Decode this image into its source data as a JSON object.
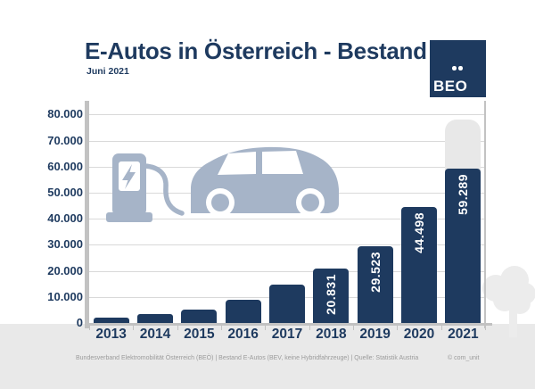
{
  "header": {
    "title": "E-Autos in Österreich - Bestand",
    "subtitle": "Juni 2021"
  },
  "logo": {
    "text": "BEO",
    "umlaut_dots": "..",
    "full_name": "BEÖ"
  },
  "chart_data": {
    "type": "bar",
    "title": "E-Autos in Österreich - Bestand",
    "subtitle": "Juni 2021",
    "xlabel": "",
    "ylabel": "",
    "ylim": [
      0,
      80000
    ],
    "grid": true,
    "categories": [
      "2013",
      "2014",
      "2015",
      "2016",
      "2017",
      "2018",
      "2019",
      "2020",
      "2021"
    ],
    "values": [
      2070,
      3386,
      5032,
      9073,
      14618,
      20831,
      29523,
      44498,
      59289
    ],
    "bar_labels": [
      "",
      "",
      "",
      "",
      "",
      "20.831",
      "29.523",
      "44.498",
      "59.289"
    ],
    "ytick_labels": [
      "80.000",
      "70.000",
      "60.000",
      "50.000",
      "40.000",
      "30.000",
      "20.000",
      "10.000",
      "0"
    ],
    "projection_bar": {
      "category": "2021",
      "value_estimate": 78000,
      "style": "light-gray ghost behind 2021 bar"
    }
  },
  "footer": {
    "source": "Bundesverband Elektromobilität Österreich (BEÖ) | Bestand E-Autos (BEV, keine Hybridfahrzeuge) | Quelle: Statistik Austria",
    "credit": "© com_unit"
  },
  "icons": {
    "illustration": "ev-charging-station-and-car",
    "decoration": "tree-silhouette"
  },
  "colors": {
    "navy": "#1e3a5f",
    "illu": "#a6b4c8",
    "ghost": "#e8e8e8",
    "band": "#e9e9e9",
    "grid": "#d9d9d9",
    "axis": "#c2c2c2",
    "tree": "#ececec",
    "footer_text": "#9b9b9b"
  }
}
